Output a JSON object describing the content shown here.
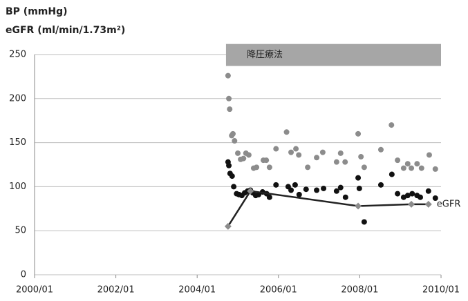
{
  "chart_data": {
    "type": "scatter",
    "title": [
      "BP (mmHg)",
      "eGFR (ml/min/1.73m²)"
    ],
    "xlim": [
      2000,
      2010
    ],
    "xticks": [
      {
        "value": 2000,
        "label": "2000/01"
      },
      {
        "value": 2002,
        "label": "2002/01"
      },
      {
        "value": 2004,
        "label": "2004/01"
      },
      {
        "value": 2006,
        "label": "2006/01"
      },
      {
        "value": 2008,
        "label": "2008/01"
      },
      {
        "value": 2010,
        "label": "2010/01"
      }
    ],
    "ylim": [
      0,
      250
    ],
    "yticks": [
      0,
      50,
      100,
      150,
      200,
      250
    ],
    "grid": true,
    "band": {
      "label": "降圧療法",
      "color": "#a6a6a6",
      "x": [
        2004.71,
        2010
      ],
      "y": [
        237,
        262
      ]
    },
    "series": [
      {
        "type": "scatter",
        "color": "#8c8c8c",
        "x": [
          2004.76,
          2004.78,
          2004.8,
          2004.85,
          2004.88,
          2004.92,
          2005.0,
          2005.07,
          2005.14,
          2005.2,
          2005.27,
          2005.39,
          2005.46,
          2005.63,
          2005.7,
          2005.78,
          2005.94,
          2006.2,
          2006.31,
          2006.43,
          2006.5,
          2006.72,
          2006.94,
          2007.09,
          2007.43,
          2007.53,
          2007.64,
          2007.96,
          2008.03,
          2008.11,
          2008.52,
          2008.78,
          2008.93,
          2009.08,
          2009.18,
          2009.27,
          2009.41,
          2009.52,
          2009.71,
          2009.86
        ],
        "values": [
          226,
          200,
          188,
          158,
          160,
          152,
          138,
          131,
          132,
          138,
          136,
          121,
          122,
          130,
          130,
          122,
          143,
          162,
          139,
          143,
          136,
          122,
          133,
          139,
          128,
          138,
          128,
          160,
          134,
          122,
          142,
          170,
          130,
          121,
          126,
          121,
          126,
          121,
          136,
          120
        ]
      },
      {
        "type": "scatter",
        "color": "#111111",
        "x": [
          2004.76,
          2004.78,
          2004.81,
          2004.86,
          2004.9,
          2004.97,
          2005.03,
          2005.1,
          2005.17,
          2005.24,
          2005.31,
          2005.37,
          2005.44,
          2005.51,
          2005.61,
          2005.71,
          2005.78,
          2005.94,
          2006.24,
          2006.31,
          2006.41,
          2006.51,
          2006.68,
          2006.94,
          2007.11,
          2007.43,
          2007.53,
          2007.65,
          2007.96,
          2007.99,
          2008.11,
          2008.52,
          2008.79,
          2008.93,
          2009.08,
          2009.18,
          2009.29,
          2009.41,
          2009.49,
          2009.69,
          2009.86
        ],
        "values": [
          128,
          124,
          115,
          112,
          100,
          92,
          91,
          90,
          93,
          95,
          96,
          93,
          90,
          91,
          94,
          92,
          88,
          102,
          100,
          96,
          102,
          91,
          97,
          96,
          98,
          95,
          99,
          88,
          110,
          98,
          60,
          102,
          114,
          92,
          88,
          90,
          92,
          90,
          88,
          95,
          87
        ]
      },
      {
        "type": "line",
        "name": "eGFR",
        "color": "#222222",
        "marker_color": "#8c8c8c",
        "x": [
          2004.76,
          2005.31,
          2007.96,
          2009.27,
          2009.69
        ],
        "values": [
          55,
          95,
          78,
          80,
          80
        ]
      }
    ]
  }
}
